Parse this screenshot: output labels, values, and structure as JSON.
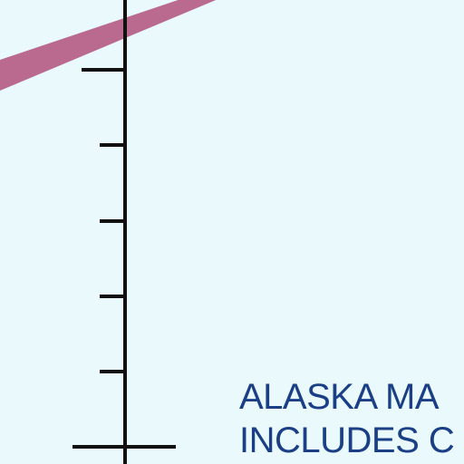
{
  "colors": {
    "background": "#e9f9fc",
    "band": "#b96a8e",
    "axis": "#111111",
    "caption_text": "#1a3f86"
  },
  "caption": {
    "line1": "ALASKA MA",
    "line2": "INCLUDES C"
  }
}
